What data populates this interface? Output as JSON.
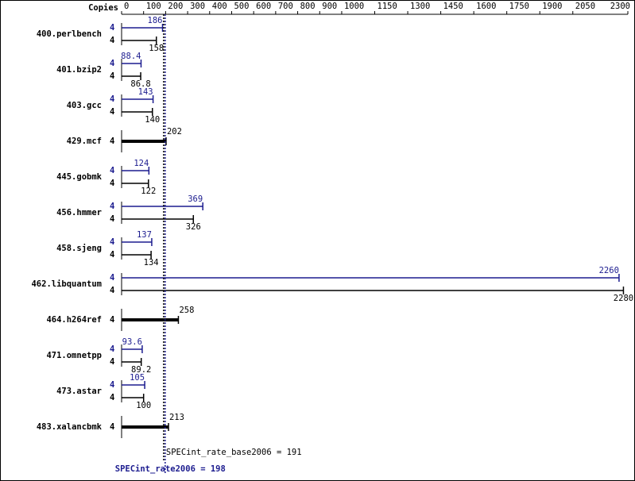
{
  "chart_data": {
    "type": "bar",
    "copies_label": "Copies",
    "categories": [
      "400.perlbench",
      "401.bzip2",
      "403.gcc",
      "429.mcf",
      "445.gobmk",
      "456.hmmer",
      "458.sjeng",
      "462.libquantum",
      "464.h264ref",
      "471.omnetpp",
      "473.astar",
      "483.xalancbmk"
    ],
    "series": [
      {
        "color": "#1c1c8f",
        "copies": [
          4,
          4,
          4,
          null,
          4,
          4,
          4,
          4,
          null,
          4,
          4,
          null
        ],
        "values": [
          186,
          88.4,
          143,
          null,
          124,
          369,
          137,
          2260,
          null,
          93.6,
          105,
          null
        ]
      },
      {
        "color": "#000000",
        "copies": [
          4,
          4,
          4,
          4,
          4,
          4,
          4,
          4,
          4,
          4,
          4,
          4
        ],
        "values": [
          158,
          86.8,
          140,
          202,
          122,
          326,
          134,
          2280,
          258,
          89.2,
          100,
          213
        ]
      }
    ],
    "xlim": [
      0,
      2300
    ],
    "xticks": [
      0,
      100,
      200,
      300,
      400,
      500,
      600,
      700,
      800,
      900,
      1000,
      1150,
      1300,
      1450,
      1600,
      1750,
      1900,
      2050,
      2300
    ],
    "reference_lines": [
      {
        "label": "SPECint_rate_base2006 = 191",
        "value": 191,
        "color": "#000000"
      },
      {
        "label": "SPECint_rate2006 = 198",
        "value": 198,
        "color": "#1c1c8f"
      }
    ]
  }
}
